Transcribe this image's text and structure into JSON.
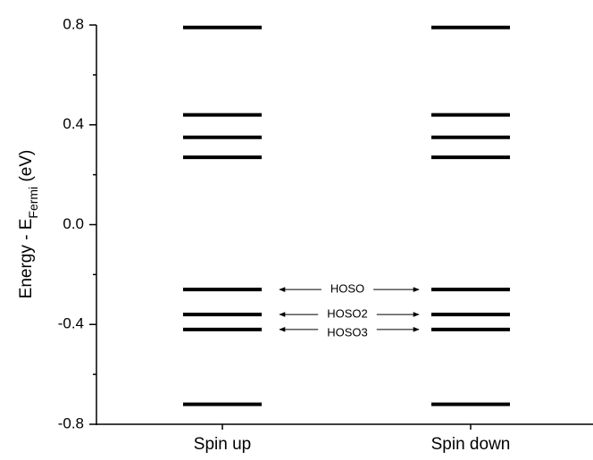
{
  "chart_data": {
    "type": "levels",
    "ylabel": {
      "text": "Energy - E",
      "sub": "Fermi",
      "suffix": " (eV)"
    },
    "categories": [
      "Spin up",
      "Spin down"
    ],
    "levels": [
      [
        0.79,
        0.44,
        0.35,
        0.27,
        -0.26,
        -0.36,
        -0.42,
        -0.72
      ],
      [
        0.79,
        0.44,
        0.35,
        0.27,
        -0.26,
        -0.36,
        -0.42,
        -0.72
      ]
    ],
    "color": "#000000",
    "ylim": [
      -0.8,
      0.8
    ],
    "yticks": [
      0.8,
      0.4,
      {
        "value": 0,
        "label": "0.0"
      },
      -0.4,
      -0.8
    ],
    "minor_yticks": [
      0.6,
      0.2,
      -0.2,
      -0.6
    ],
    "annotations": [
      {
        "text": "HOSO",
        "value": -0.26
      },
      {
        "text": "HOSO2",
        "value": -0.36
      },
      {
        "text": "HOSO3",
        "value": -0.42
      }
    ]
  }
}
